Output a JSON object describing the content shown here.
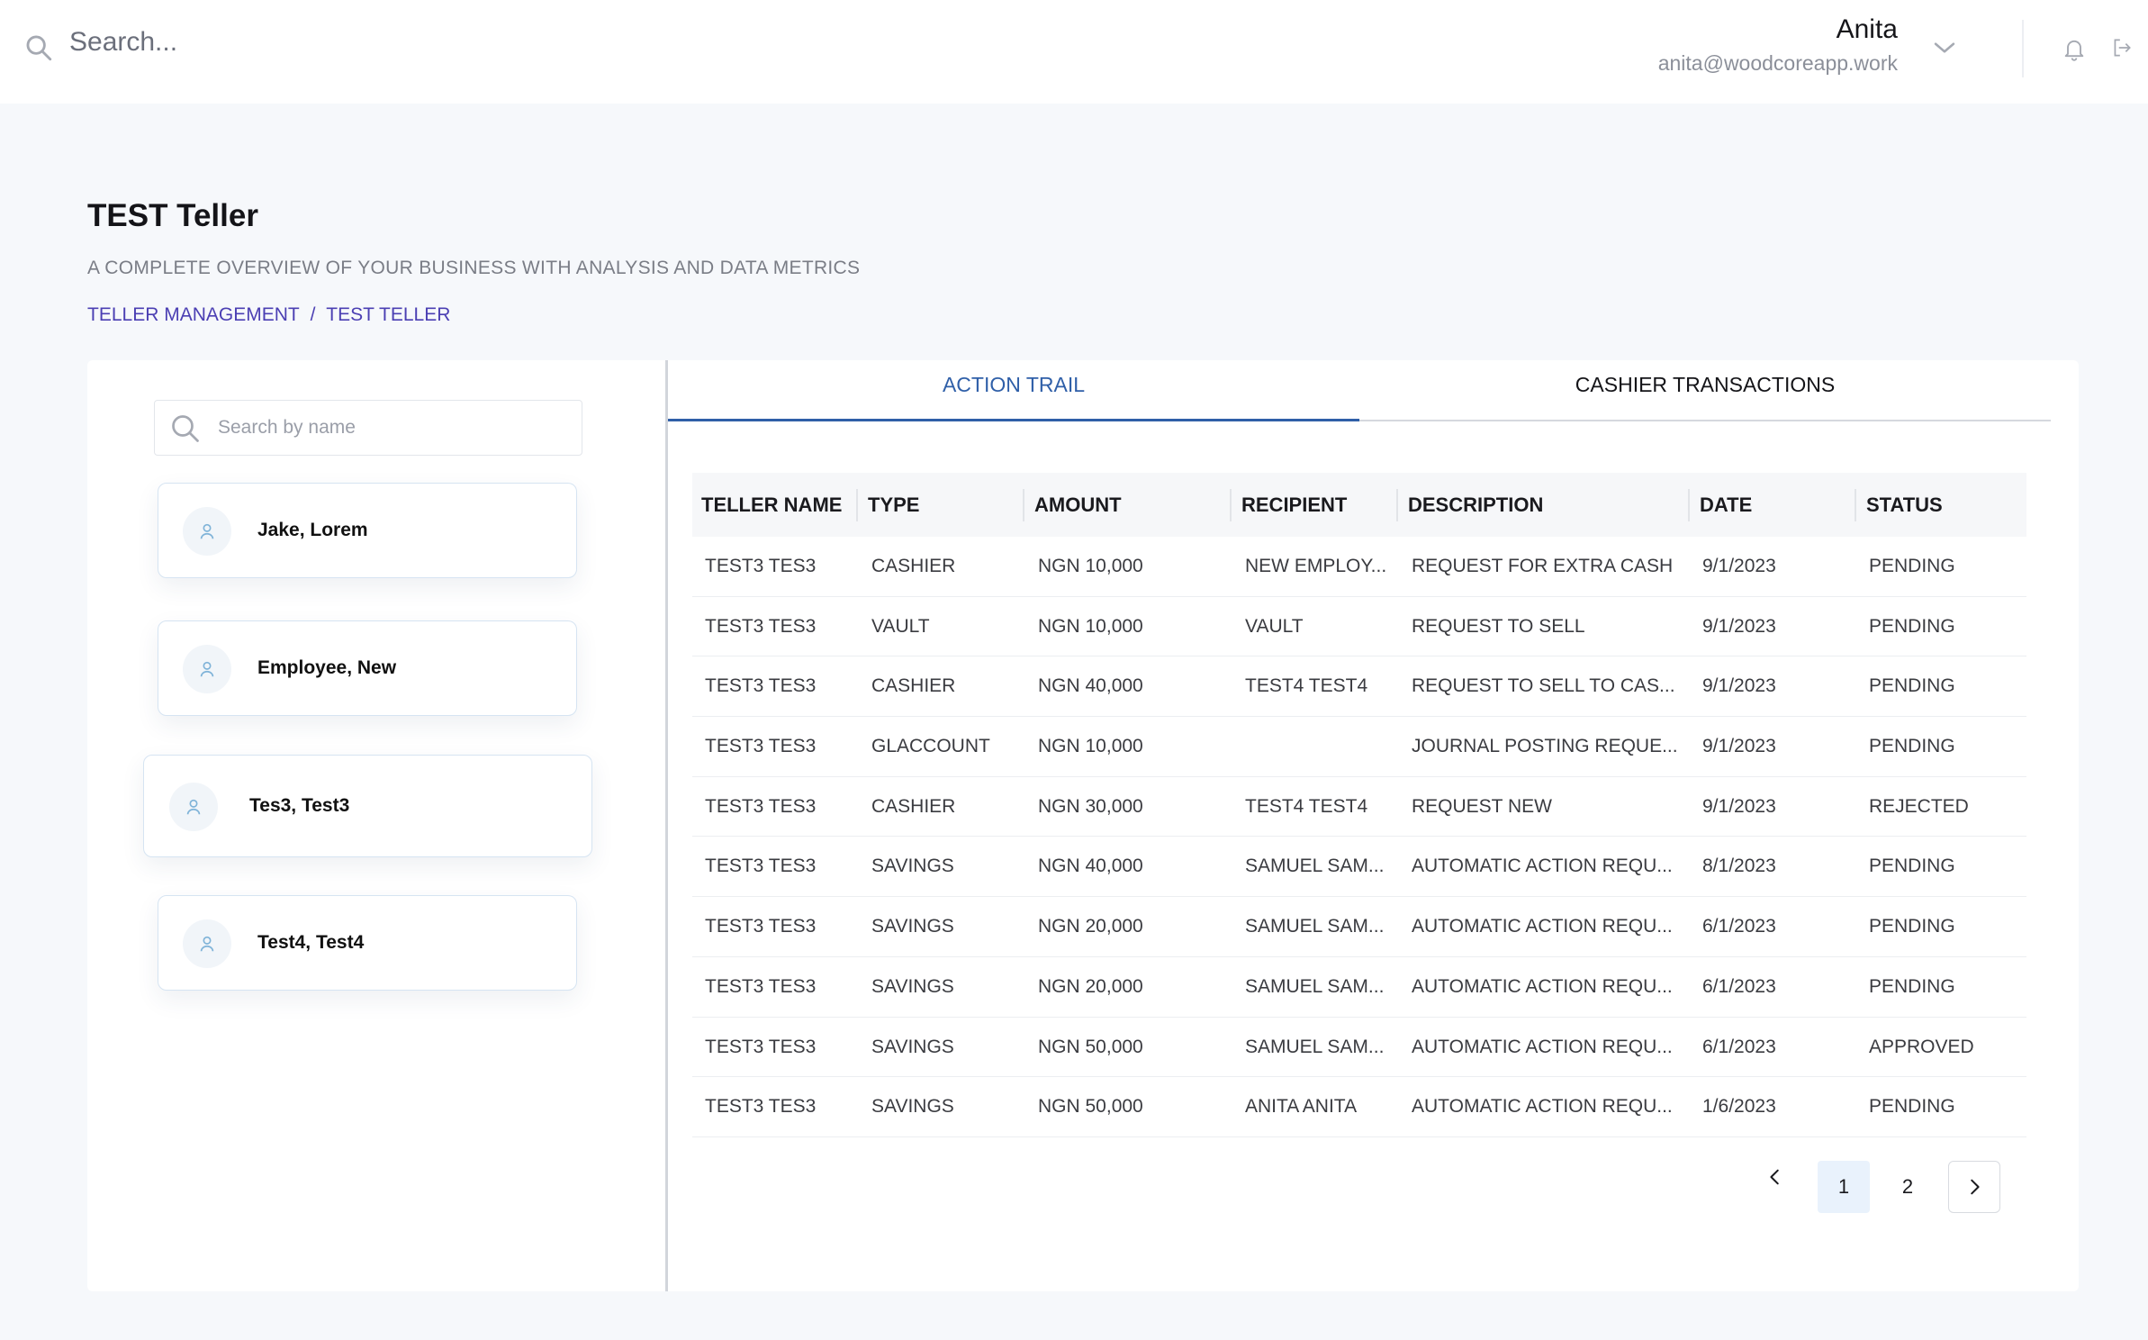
{
  "header": {
    "search_placeholder": "Search...",
    "user_name": "Anita",
    "user_email": "anita@woodcoreapp.work"
  },
  "page": {
    "title": "TEST Teller",
    "subtitle": "A COMPLETE OVERVIEW OF YOUR BUSINESS WITH ANALYSIS AND DATA METRICS",
    "breadcrumb": [
      "TELLER MANAGEMENT",
      "/",
      "TEST TELLER"
    ]
  },
  "sidebar": {
    "search_placeholder": "Search by name",
    "tellers": [
      "Jake, Lorem",
      "Employee, New",
      "Tes3, Test3",
      "Test4, Test4"
    ],
    "selected_index": 2
  },
  "tabs": [
    {
      "label": "ACTION TRAIL",
      "active": true
    },
    {
      "label": "CASHIER TRANSACTIONS",
      "active": false
    }
  ],
  "table": {
    "headers": [
      "TELLER NAME",
      "TYPE",
      "AMOUNT",
      "RECIPIENT",
      "DESCRIPTION",
      "DATE",
      "STATUS"
    ],
    "rows": [
      [
        "TEST3 TES3",
        "CASHIER",
        "NGN 10,000",
        "NEW EMPLOY...",
        "REQUEST FOR EXTRA CASH",
        "9/1/2023",
        "PENDING"
      ],
      [
        "TEST3 TES3",
        "VAULT",
        "NGN 10,000",
        "VAULT",
        "REQUEST TO SELL",
        "9/1/2023",
        "PENDING"
      ],
      [
        "TEST3 TES3",
        "CASHIER",
        "NGN 40,000",
        "TEST4 TEST4",
        "REQUEST TO SELL TO CAS...",
        "9/1/2023",
        "PENDING"
      ],
      [
        "TEST3 TES3",
        "GLACCOUNT",
        "NGN 10,000",
        "",
        "JOURNAL POSTING REQUE...",
        "9/1/2023",
        "PENDING"
      ],
      [
        "TEST3 TES3",
        "CASHIER",
        "NGN 30,000",
        "TEST4 TEST4",
        "REQUEST NEW",
        "9/1/2023",
        "REJECTED"
      ],
      [
        "TEST3 TES3",
        "SAVINGS",
        "NGN 40,000",
        "SAMUEL SAM...",
        "AUTOMATIC ACTION REQU...",
        "8/1/2023",
        "PENDING"
      ],
      [
        "TEST3 TES3",
        "SAVINGS",
        "NGN 20,000",
        "SAMUEL SAM...",
        "AUTOMATIC ACTION REQU...",
        "6/1/2023",
        "PENDING"
      ],
      [
        "TEST3 TES3",
        "SAVINGS",
        "NGN 20,000",
        "SAMUEL SAM...",
        "AUTOMATIC ACTION REQU...",
        "6/1/2023",
        "PENDING"
      ],
      [
        "TEST3 TES3",
        "SAVINGS",
        "NGN 50,000",
        "SAMUEL SAM...",
        "AUTOMATIC ACTION REQU...",
        "6/1/2023",
        "APPROVED"
      ],
      [
        "TEST3 TES3",
        "SAVINGS",
        "NGN 50,000",
        "ANITA ANITA",
        "AUTOMATIC ACTION REQU...",
        "1/6/2023",
        "PENDING"
      ]
    ]
  },
  "pagination": {
    "pages": [
      "1",
      "2"
    ],
    "current": "1"
  },
  "icons": {
    "search": "search-icon",
    "chevron": "chevron-down-icon",
    "bell": "bell-icon",
    "logout": "logout-icon",
    "avatar": "user-icon",
    "prev": "chevron-left-icon",
    "next": "chevron-right-icon"
  },
  "colors": {
    "accent": "#2f5fa8",
    "breadcrumb": "#4b3fb3",
    "background": "#f6f8fb"
  }
}
